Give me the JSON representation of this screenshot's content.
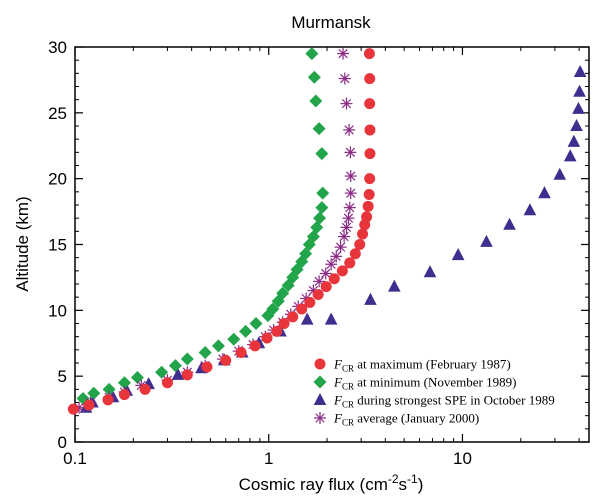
{
  "chart_data": {
    "type": "scatter",
    "title": "Murmansk",
    "xlabel": "Cosmic ray flux (cm",
    "xlabel_sup1": "-2",
    "xlabel_mid": "s",
    "xlabel_sup2": "-1",
    "xlabel_end": ")",
    "ylabel": "Altitude (km)",
    "x_scale": "log",
    "xlim": [
      0.1,
      45
    ],
    "ylim": [
      0,
      30
    ],
    "x_ticks": [
      {
        "value": 0.1,
        "label": "0.1"
      },
      {
        "value": 1,
        "label": "1"
      },
      {
        "value": 10,
        "label": "10"
      }
    ],
    "y_ticks": [
      {
        "value": 0,
        "label": "0"
      },
      {
        "value": 5,
        "label": "5"
      },
      {
        "value": 10,
        "label": "10"
      },
      {
        "value": 15,
        "label": "15"
      },
      {
        "value": 20,
        "label": "20"
      },
      {
        "value": 25,
        "label": "25"
      },
      {
        "value": 30,
        "label": "30"
      }
    ],
    "legend_position": "bottom-right",
    "series": [
      {
        "symbol": "F",
        "subscript": "CR",
        "name": " at maximum (February 1987)",
        "marker": "circle",
        "color": "#e8353c",
        "points": [
          [
            0.098,
            2.5
          ],
          [
            0.118,
            2.8
          ],
          [
            0.148,
            3.2
          ],
          [
            0.18,
            3.6
          ],
          [
            0.23,
            4.0
          ],
          [
            0.3,
            4.5
          ],
          [
            0.38,
            5.1
          ],
          [
            0.48,
            5.7
          ],
          [
            0.6,
            6.2
          ],
          [
            0.72,
            6.8
          ],
          [
            0.85,
            7.3
          ],
          [
            0.98,
            7.9
          ],
          [
            1.1,
            8.4
          ],
          [
            1.2,
            9.0
          ],
          [
            1.33,
            9.5
          ],
          [
            1.48,
            10.1
          ],
          [
            1.63,
            10.6
          ],
          [
            1.8,
            11.2
          ],
          [
            1.98,
            11.8
          ],
          [
            2.18,
            12.4
          ],
          [
            2.4,
            13.0
          ],
          [
            2.62,
            13.6
          ],
          [
            2.8,
            14.3
          ],
          [
            2.95,
            15.0
          ],
          [
            3.05,
            15.8
          ],
          [
            3.13,
            16.5
          ],
          [
            3.2,
            17.1
          ],
          [
            3.26,
            17.9
          ],
          [
            3.3,
            18.8
          ],
          [
            3.32,
            20.0
          ],
          [
            3.33,
            21.9
          ],
          [
            3.33,
            23.7
          ],
          [
            3.32,
            25.7
          ],
          [
            3.32,
            27.6
          ],
          [
            3.31,
            29.5
          ]
        ]
      },
      {
        "symbol": "F",
        "subscript": "CR",
        "name": " at minimum (November 1989)",
        "marker": "diamond",
        "color": "#22a44a",
        "points": [
          [
            0.11,
            3.3
          ],
          [
            0.125,
            3.7
          ],
          [
            0.15,
            4.0
          ],
          [
            0.18,
            4.5
          ],
          [
            0.21,
            4.9
          ],
          [
            0.28,
            5.3
          ],
          [
            0.33,
            5.8
          ],
          [
            0.38,
            6.3
          ],
          [
            0.47,
            6.8
          ],
          [
            0.55,
            7.3
          ],
          [
            0.66,
            7.8
          ],
          [
            0.76,
            8.4
          ],
          [
            0.86,
            9.0
          ],
          [
            0.99,
            9.6
          ],
          [
            1.05,
            10.1
          ],
          [
            1.12,
            10.7
          ],
          [
            1.18,
            11.3
          ],
          [
            1.26,
            11.9
          ],
          [
            1.33,
            12.5
          ],
          [
            1.4,
            13.1
          ],
          [
            1.48,
            13.7
          ],
          [
            1.55,
            14.3
          ],
          [
            1.62,
            15.0
          ],
          [
            1.7,
            15.6
          ],
          [
            1.77,
            16.3
          ],
          [
            1.83,
            17.0
          ],
          [
            1.88,
            17.8
          ],
          [
            1.9,
            18.9
          ],
          [
            1.88,
            21.9
          ],
          [
            1.82,
            23.8
          ],
          [
            1.75,
            25.9
          ],
          [
            1.72,
            27.7
          ],
          [
            1.67,
            29.5
          ]
        ]
      },
      {
        "symbol": "F",
        "subscript": "CR",
        "name": " during strongest SPE in October 1989",
        "marker": "triangle",
        "color": "#3e2f8f",
        "points": [
          [
            0.114,
            2.6
          ],
          [
            0.123,
            3.0
          ],
          [
            0.157,
            3.4
          ],
          [
            0.185,
            3.9
          ],
          [
            0.24,
            4.4
          ],
          [
            0.34,
            5.1
          ],
          [
            0.45,
            5.6
          ],
          [
            0.59,
            6.2
          ],
          [
            0.73,
            6.8
          ],
          [
            0.89,
            7.5
          ],
          [
            1.15,
            8.4
          ],
          [
            1.58,
            9.3
          ],
          [
            2.1,
            9.3
          ],
          [
            3.35,
            10.8
          ],
          [
            4.45,
            11.8
          ],
          [
            6.8,
            12.9
          ],
          [
            9.5,
            14.2
          ],
          [
            13.3,
            15.2
          ],
          [
            17.5,
            16.5
          ],
          [
            22.3,
            17.6
          ],
          [
            26.5,
            18.9
          ],
          [
            31.8,
            20.3
          ],
          [
            36.0,
            21.7
          ],
          [
            37.6,
            22.8
          ],
          [
            38.8,
            24.0
          ],
          [
            39.7,
            25.3
          ],
          [
            40.2,
            26.6
          ],
          [
            40.5,
            28.1
          ]
        ]
      },
      {
        "symbol": "F",
        "subscript": "CR",
        "name": " average (January 2000)",
        "marker": "asterisk",
        "color": "#8b2a85",
        "points": [
          [
            0.105,
            2.6
          ],
          [
            0.12,
            3.0
          ],
          [
            0.15,
            3.4
          ],
          [
            0.18,
            3.8
          ],
          [
            0.22,
            4.3
          ],
          [
            0.3,
            4.7
          ],
          [
            0.38,
            5.3
          ],
          [
            0.47,
            5.8
          ],
          [
            0.58,
            6.3
          ],
          [
            0.7,
            6.9
          ],
          [
            0.83,
            7.4
          ],
          [
            0.96,
            8.0
          ],
          [
            1.06,
            8.5
          ],
          [
            1.18,
            9.1
          ],
          [
            1.3,
            9.7
          ],
          [
            1.42,
            10.3
          ],
          [
            1.56,
            10.9
          ],
          [
            1.7,
            11.5
          ],
          [
            1.82,
            12.2
          ],
          [
            1.97,
            12.8
          ],
          [
            2.1,
            13.5
          ],
          [
            2.23,
            14.1
          ],
          [
            2.35,
            14.8
          ],
          [
            2.45,
            15.6
          ],
          [
            2.52,
            16.3
          ],
          [
            2.58,
            17.0
          ],
          [
            2.62,
            17.8
          ],
          [
            2.65,
            18.9
          ],
          [
            2.65,
            20.2
          ],
          [
            2.64,
            22.0
          ],
          [
            2.6,
            23.7
          ],
          [
            2.52,
            25.7
          ],
          [
            2.47,
            27.6
          ],
          [
            2.42,
            29.5
          ]
        ]
      }
    ]
  }
}
